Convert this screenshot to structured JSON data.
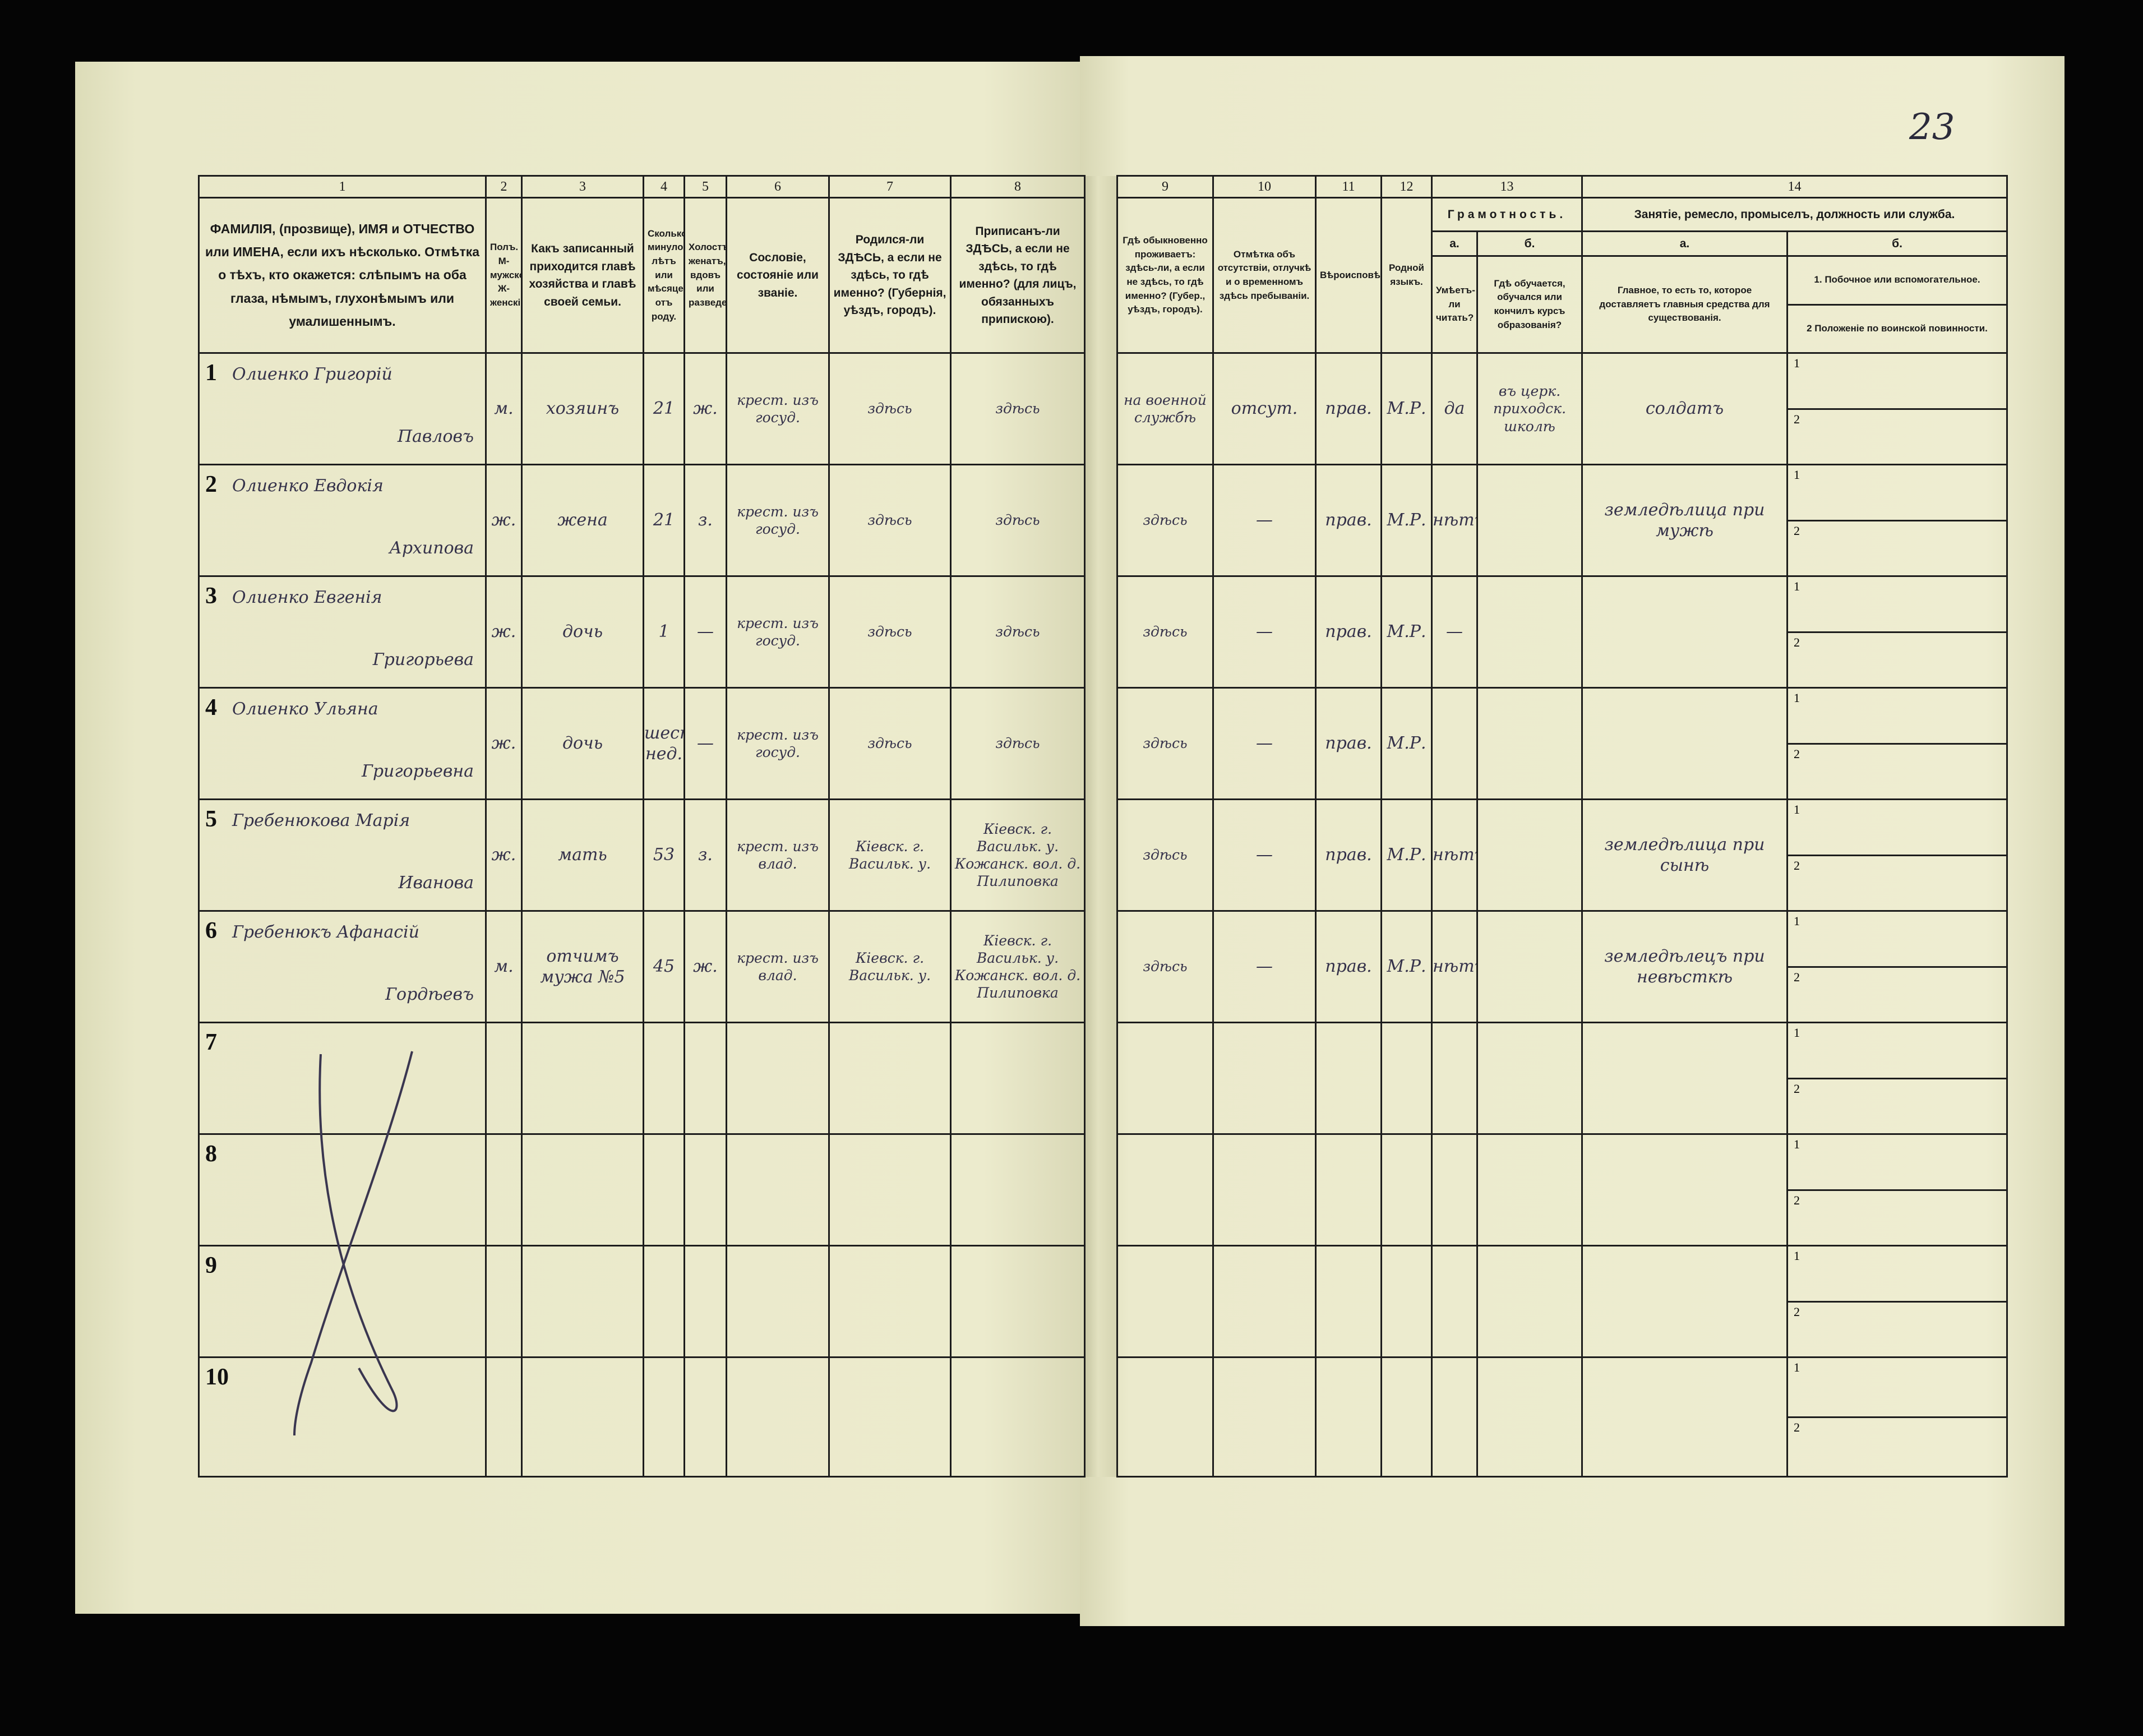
{
  "page_number": "23",
  "table": {
    "column_numbers": [
      "1",
      "2",
      "3",
      "4",
      "5",
      "6",
      "7",
      "8",
      "9",
      "10",
      "11",
      "12",
      "13",
      "14"
    ],
    "headers": {
      "c1": "ФАМИЛІЯ, (прозвище), ИМЯ и ОТЧЕСТВО или ИМЕНА, если ихъ нѣсколько. Отмѣтка о тѣхъ, кто окажется: слѣпымъ на оба глаза, нѣмымъ, глухонѣмымъ или умалишеннымъ.",
      "c2": "Полъ. М-мужской. Ж-женскій.",
      "c3": "Какъ записанный приходится главѣ хозяйства и главѣ своей семьи.",
      "c4": "Сколько минуло лѣтъ или мѣсяцевъ отъ роду.",
      "c5": "Холостъ, женатъ, вдовъ или разведенъ.",
      "c6": "Сословіе, состояніе или званіе.",
      "c7": "Родился-ли ЗДѢСЬ, а если не здѣсь, то гдѣ именно? (Губернія, уѣздъ, городъ).",
      "c8": "Приписанъ-ли ЗДѢСЬ, а если не здѣсь, то гдѣ именно? (для лицъ, обязанныхъ припискою).",
      "c9": "Гдѣ обыкновенно проживаетъ: здѣсь-ли, а если не здѣсь, то гдѣ именно? (Губер., уѣздъ, городъ).",
      "c10": "Отмѣтка объ отсутствіи, отлучкѣ и о временномъ здѣсь пребываніи.",
      "c11": "Вѣроисповѣданіе.",
      "c12": "Родной языкъ.",
      "c13_group": "Грамотность.",
      "c13a_letter": "а.",
      "c13b_letter": "б.",
      "c13a": "Умѣетъ-ли читать?",
      "c13b": "Гдѣ обучается, обучался или кончилъ курсъ образованія?",
      "c14_group": "Занятіе, ремесло, промыселъ, должность или служба.",
      "c14a_letter": "а.",
      "c14b_letter": "б.",
      "c14a": "Главное, то есть то, которое доставляетъ главныя средства для существованія.",
      "c14b_1": "1. Побочное или вспомогательное.",
      "c14b_2": "2 Положеніе по воинской повинности."
    },
    "sub_labels": [
      "1",
      "2"
    ],
    "rows": [
      {
        "num": "1",
        "surname_given": "Олиенко Григорій",
        "patronymic": "Павловъ",
        "sex": "м.",
        "relation": "хозяинъ",
        "age": "21",
        "marital": "ж.",
        "estate": "крест. изъ госуд.",
        "born": "здѣсь",
        "registered": "здѣсь",
        "residence": "на военной службѣ",
        "absence": "отсут.",
        "religion": "прав.",
        "language": "М.Р.",
        "literate": "да",
        "education": "въ церк. приходск. школѣ",
        "occupation": "солдатъ"
      },
      {
        "num": "2",
        "surname_given": "Олиенко Евдокія",
        "patronymic": "Архипова",
        "sex": "ж.",
        "relation": "жена",
        "age": "21",
        "marital": "з.",
        "estate": "крест. изъ госуд.",
        "born": "здѣсь",
        "registered": "здѣсь",
        "residence": "здѣсь",
        "absence": "—",
        "religion": "прав.",
        "language": "М.Р.",
        "literate": "нѣтъ",
        "education": "",
        "occupation": "земледѣлица при мужѣ"
      },
      {
        "num": "3",
        "surname_given": "Олиенко Евгенія",
        "patronymic": "Григорьева",
        "sex": "ж.",
        "relation": "дочь",
        "age": "1",
        "marital": "—",
        "estate": "крест. изъ госуд.",
        "born": "здѣсь",
        "registered": "здѣсь",
        "residence": "здѣсь",
        "absence": "—",
        "religion": "прав.",
        "language": "М.Р.",
        "literate": "—",
        "education": "",
        "occupation": ""
      },
      {
        "num": "4",
        "surname_given": "Олиенко Ульяна",
        "patronymic": "Григорьевна",
        "sex": "ж.",
        "relation": "дочь",
        "age": "шесть нед.",
        "marital": "—",
        "estate": "крест. изъ госуд.",
        "born": "здѣсь",
        "registered": "здѣсь",
        "residence": "здѣсь",
        "absence": "—",
        "religion": "прав.",
        "language": "М.Р.",
        "literate": "",
        "education": "",
        "occupation": ""
      },
      {
        "num": "5",
        "surname_given": "Гребенюкова Марія",
        "patronymic": "Иванова",
        "sex": "ж.",
        "relation": "мать",
        "age": "53",
        "marital": "з.",
        "estate": "крест. изъ влад.",
        "born": "Кіевск. г. Васильк. у.",
        "registered": "Кіевск. г. Васильк. у. Кожанск. вол. д. Пилиповка",
        "residence": "здѣсь",
        "absence": "—",
        "religion": "прав.",
        "language": "М.Р.",
        "literate": "нѣтъ",
        "education": "",
        "occupation": "земледѣлица при сынѣ"
      },
      {
        "num": "6",
        "surname_given": "Гребенюкъ Афанасій",
        "patronymic": "Гордѣевъ",
        "sex": "м.",
        "relation": "отчимъ мужа №5",
        "age": "45",
        "marital": "ж.",
        "estate": "крест. изъ влад.",
        "born": "Кіевск. г. Васильк. у.",
        "registered": "Кіевск. г. Васильк. у. Кожанск. вол. д. Пилиповка",
        "residence": "здѣсь",
        "absence": "—",
        "religion": "прав.",
        "language": "М.Р.",
        "literate": "нѣтъ",
        "education": "",
        "occupation": "земледѣлецъ при невѣсткѣ"
      },
      {
        "num": "7"
      },
      {
        "num": "8"
      },
      {
        "num": "9"
      },
      {
        "num": "10"
      }
    ]
  },
  "colors": {
    "paper": "#e8e7c6",
    "ink_print": "#1a1a1a",
    "ink_hand": "#35324a",
    "background": "#050505"
  }
}
